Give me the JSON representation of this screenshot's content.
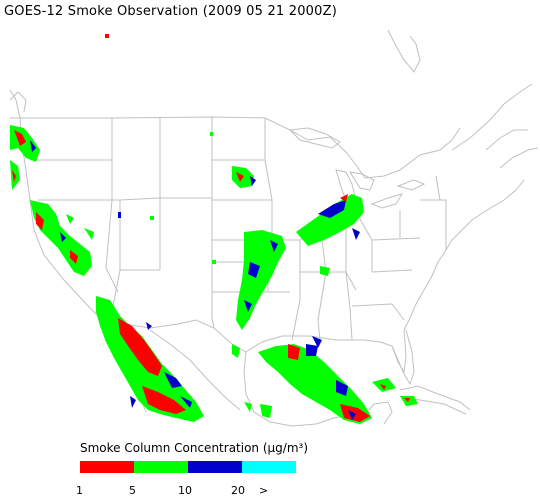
{
  "title": "GOES-12 Smoke Observation (2009 05 21  2000Z)",
  "legend": {
    "title": "Smoke Column Concentration (μg/m³)",
    "bins": [
      {
        "color": "#ff0000"
      },
      {
        "color": "#00ff00"
      },
      {
        "color": "#0000cc"
      },
      {
        "color": "#00ffff"
      }
    ],
    "ticks": [
      "1",
      "5",
      "10",
      "20",
      ">"
    ]
  },
  "colors": {
    "background": "#ffffff",
    "boundary": "#c0c0c0",
    "low": "#ff0000",
    "moderate": "#00ff00",
    "high": "#0000cc",
    "very_high": "#00ffff"
  }
}
